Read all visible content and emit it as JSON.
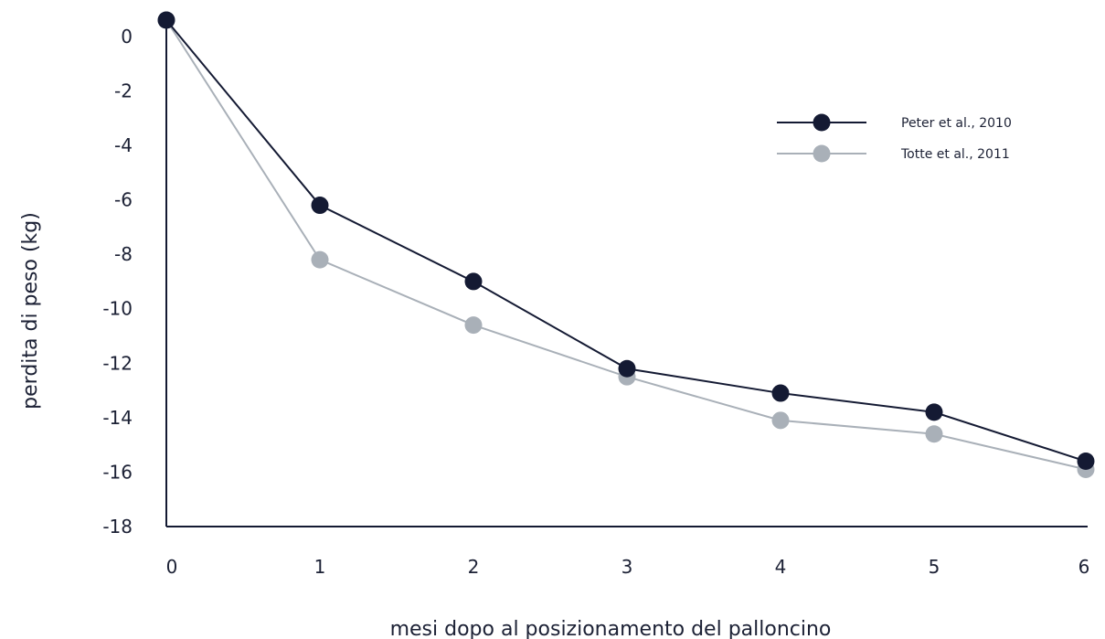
{
  "chart_data": {
    "type": "line",
    "title": "",
    "xlabel": "mesi dopo al posizionamento del palloncino",
    "ylabel": "perdita di peso (kg)",
    "x": [
      0,
      1,
      2,
      3,
      4,
      5,
      6
    ],
    "xticks": [
      "0",
      "1",
      "2",
      "3",
      "4",
      "5",
      "6"
    ],
    "yticks": [
      "0",
      "-2",
      "-4",
      "-6",
      "-8",
      "-10",
      "-12",
      "-14",
      "-16",
      "-18"
    ],
    "xlim": [
      0,
      6
    ],
    "ylim": [
      -18,
      0.6
    ],
    "grid": false,
    "legend_position": "top-right",
    "series": [
      {
        "name": "Peter et al., 2010",
        "color": "#141a33",
        "values": [
          0.6,
          -6.2,
          -9.0,
          -12.2,
          -13.1,
          -13.8,
          -15.6
        ]
      },
      {
        "name": "Totte et al., 2011",
        "color": "#a9b0b8",
        "values": [
          0.6,
          -8.2,
          -10.6,
          -12.5,
          -14.1,
          -14.6,
          -15.9
        ]
      }
    ]
  }
}
